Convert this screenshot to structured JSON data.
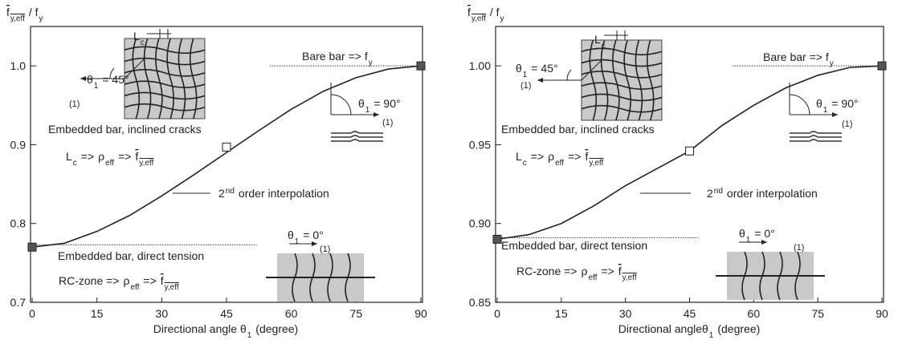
{
  "chart_data": [
    {
      "type": "line",
      "ylabel": [
        {
          "t": "f",
          "sub": "y,eff",
          "bar": true
        },
        {
          "t": "/ f",
          "sub": "y"
        }
      ],
      "xlabel": [
        {
          "t": "Directional angle θ",
          "sub": "1"
        },
        {
          "t": "(degree)"
        }
      ],
      "xlim": [
        0,
        90
      ],
      "xticks": [
        0,
        15,
        30,
        45,
        60,
        75,
        90
      ],
      "ylim": [
        0.7,
        1.05
      ],
      "yticks": [
        0.7,
        0.8,
        0.9,
        {
          "value": 1,
          "label": "1.0"
        }
      ],
      "x": [
        0,
        7.5,
        15,
        22.5,
        30,
        37.5,
        45,
        52.5,
        60,
        67.5,
        75,
        82.5,
        90
      ],
      "series": [
        {
          "color": "#222222",
          "values": [
            0.77,
            0.775,
            0.79,
            0.81,
            0.835,
            0.862,
            0.89,
            0.918,
            0.945,
            0.968,
            0.985,
            0.996,
            1.0
          ]
        }
      ],
      "markers": [
        {
          "x": 0,
          "y": 0.77,
          "fill": "#555555"
        },
        {
          "x": 90,
          "y": 1.0,
          "fill": "#555555"
        },
        {
          "x": 45,
          "y": 0.897,
          "fill": "#ffffff"
        }
      ],
      "ref_lines": [
        {
          "x": [
            55,
            90
          ],
          "y": 1.0
        },
        {
          "x": [
            0,
            52
          ],
          "y": 0.773
        }
      ],
      "annotations": [
        [
          {
            "t": "Bare bar => f",
            "sub": "y"
          }
        ],
        [
          {
            "t": "θ",
            "sub": "1"
          },
          {
            "t": "= 45°"
          }
        ],
        [
          {
            "t": "(1)"
          }
        ],
        [
          {
            "t": "L",
            "sub": "c"
          }
        ],
        [
          {
            "t": "θ",
            "sub": "1"
          },
          {
            "t": "= 90°"
          }
        ],
        [
          {
            "t": "(1)"
          }
        ],
        [
          {
            "t": "Embedded bar, inclined cracks"
          }
        ],
        [
          {
            "t": "L",
            "sub": "c"
          },
          {
            "t": "=>"
          },
          {
            "t": "ρ",
            "sub": "eff"
          },
          {
            "t": "=>"
          },
          {
            "t": "f",
            "sub": "y,eff",
            "bar": true
          }
        ],
        [
          {
            "t": "2",
            "sup": "nd"
          },
          {
            "t": "order interpolation"
          }
        ],
        [
          {
            "t": "θ",
            "sub": "1"
          },
          {
            "t": "= 0°"
          }
        ],
        [
          {
            "t": "(1)"
          }
        ],
        [
          {
            "t": "Embedded bar, direct tension"
          }
        ],
        [
          {
            "t": "RC-zone =>"
          },
          {
            "t": "ρ",
            "sub": "eff"
          },
          {
            "t": "=>"
          },
          {
            "t": "f",
            "sub": "y,eff",
            "bar": true
          }
        ]
      ]
    },
    {
      "type": "line",
      "ylabel": [
        {
          "t": "f",
          "sub": "y,eff",
          "bar": true
        },
        {
          "t": "/ f",
          "sub": "y"
        }
      ],
      "xlabel": [
        {
          "t": "Directional angleθ",
          "sub": "1"
        },
        {
          "t": "(degree)"
        }
      ],
      "xlim": [
        0,
        90
      ],
      "xticks": [
        0,
        15,
        30,
        45,
        60,
        75,
        90
      ],
      "ylim": [
        0.85,
        1.025
      ],
      "yticks": [
        0.85,
        {
          "value": 0.9,
          "label": "0.90"
        },
        0.95,
        {
          "value": 1,
          "label": "1.00"
        }
      ],
      "x": [
        0,
        7.5,
        15,
        22.5,
        30,
        37.5,
        45,
        52.5,
        60,
        67.5,
        75,
        82.5,
        90
      ],
      "series": [
        {
          "color": "#222222",
          "values": [
            0.89,
            0.893,
            0.9,
            0.911,
            0.924,
            0.935,
            0.946,
            0.962,
            0.975,
            0.986,
            0.994,
            0.999,
            1.0
          ]
        }
      ],
      "markers": [
        {
          "x": 0,
          "y": 0.89,
          "fill": "#555555"
        },
        {
          "x": 90,
          "y": 1.0,
          "fill": "#555555"
        },
        {
          "x": 45,
          "y": 0.946,
          "fill": "#ffffff"
        }
      ],
      "ref_lines": [
        {
          "x": [
            55,
            90
          ],
          "y": 1.0
        },
        {
          "x": [
            0,
            47
          ],
          "y": 0.891
        }
      ],
      "annotations": [
        [
          {
            "t": "Bare bar => f",
            "sub": "y"
          }
        ],
        [
          {
            "t": "θ",
            "sub": "1"
          },
          {
            "t": "= 45°"
          }
        ],
        [
          {
            "t": "(1)"
          }
        ],
        [
          {
            "t": "L",
            "sub": "c"
          }
        ],
        [
          {
            "t": "θ",
            "sub": "1"
          },
          {
            "t": "= 90°"
          }
        ],
        [
          {
            "t": "(1)"
          }
        ],
        [
          {
            "t": "Embedded bar, inclined cracks"
          }
        ],
        [
          {
            "t": "L",
            "sub": "c"
          },
          {
            "t": "=>"
          },
          {
            "t": "ρ",
            "sub": "eff"
          },
          {
            "t": "=>"
          },
          {
            "t": "f",
            "sub": "y,eff",
            "bar": true
          }
        ],
        [
          {
            "t": "2",
            "sup": "nd"
          },
          {
            "t": "order interpolation"
          }
        ],
        [
          {
            "t": "θ",
            "sub": "1"
          },
          {
            "t": "= 0°"
          }
        ],
        [
          {
            "t": "(1)"
          }
        ],
        [
          {
            "t": "Embedded bar, direct tension"
          }
        ],
        [
          {
            "t": "RC-zone =>"
          },
          {
            "t": "ρ",
            "sub": "eff"
          },
          {
            "t": "=>"
          },
          {
            "t": "f",
            "sub": "y,eff",
            "bar": true
          }
        ]
      ]
    }
  ]
}
